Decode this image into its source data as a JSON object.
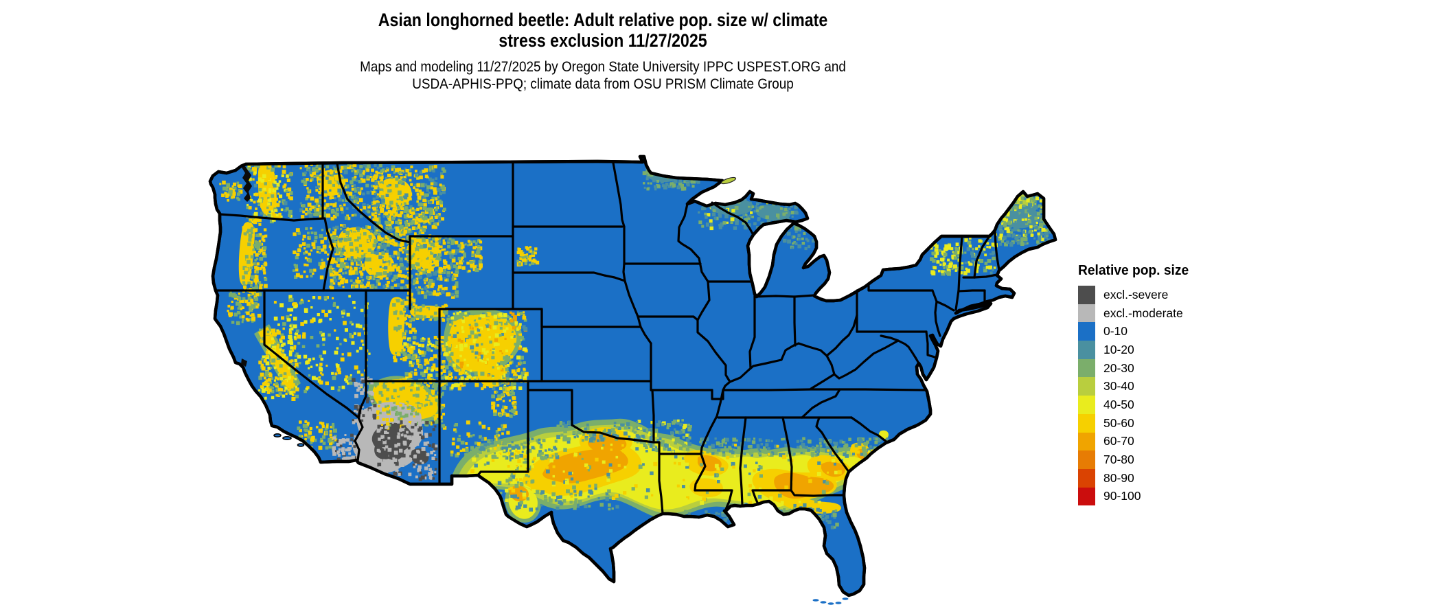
{
  "header": {
    "title_line1": "Asian longhorned beetle: Adult relative pop. size w/ climate",
    "title_line2": "stress exclusion 11/27/2025",
    "subtitle_line1": "Maps and modeling 11/27/2025 by Oregon State University IPPC USPEST.ORG and",
    "subtitle_line2": "USDA-APHIS-PPQ; climate data from OSU PRISM Climate Group"
  },
  "legend": {
    "title": "Relative pop. size",
    "items": [
      {
        "label": "excl.-severe",
        "color": "#4d4d4d"
      },
      {
        "label": "excl.-moderate",
        "color": "#b8b8b8"
      },
      {
        "label": "0-10",
        "color": "#1b70c6"
      },
      {
        "label": "10-20",
        "color": "#4a90a0"
      },
      {
        "label": "20-30",
        "color": "#7bae6b"
      },
      {
        "label": "30-40",
        "color": "#b9ce3e"
      },
      {
        "label": "40-50",
        "color": "#e9ec1e"
      },
      {
        "label": "50-60",
        "color": "#f6d000"
      },
      {
        "label": "60-70",
        "color": "#f0a400"
      },
      {
        "label": "70-80",
        "color": "#e77c04"
      },
      {
        "label": "80-90",
        "color": "#da4302"
      },
      {
        "label": "90-100",
        "color": "#cb0d0d"
      }
    ]
  },
  "map": {
    "palette": {
      "base_blue": "#1b70c6",
      "severe_gray": "#4d4d4d",
      "moderate_gray": "#b8b8b8",
      "teal": "#4a90a0",
      "green": "#7bae6b",
      "yellow_green": "#b9ce3e",
      "yellow": "#e9ec1e",
      "gold": "#f6d000",
      "orange": "#f0a400",
      "dark_orange": "#e77c04",
      "border_black": "#000000",
      "water_white": "#ffffff"
    }
  }
}
